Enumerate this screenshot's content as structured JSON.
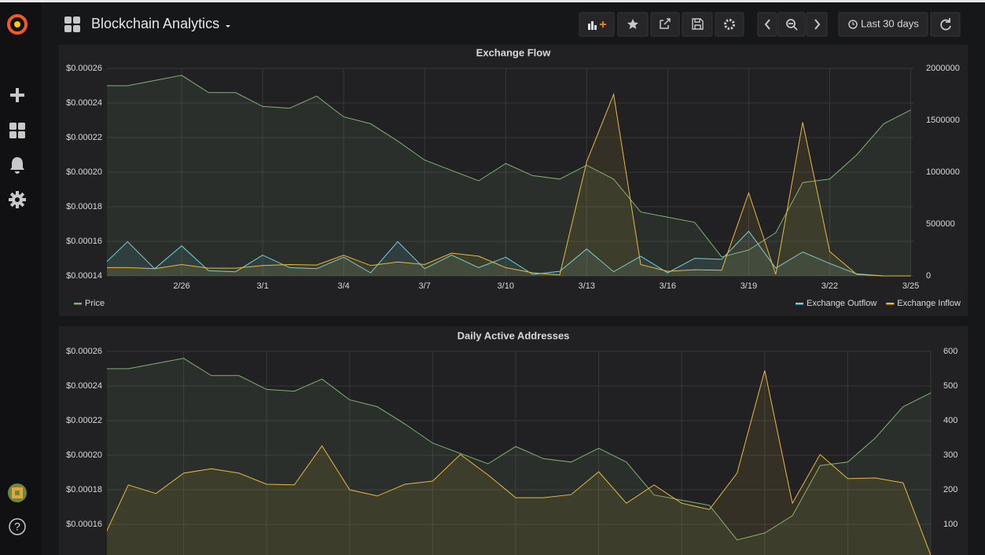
{
  "header": {
    "title": "Blockchain Analytics",
    "time_range": "Last 30 days"
  },
  "sidebar": {
    "help": "?"
  },
  "chart_data": [
    {
      "type": "line",
      "title": "Exchange Flow",
      "categories": [
        null,
        null,
        null,
        "2/26",
        null,
        null,
        "3/1",
        null,
        null,
        "3/4",
        null,
        null,
        "3/7",
        null,
        null,
        "3/10",
        null,
        null,
        "3/13",
        null,
        null,
        "3/16",
        null,
        null,
        "3/19",
        null,
        null,
        "3/22",
        null,
        null,
        "3/25"
      ],
      "ylim": [
        0.00014,
        0.00026
      ],
      "yticks": [
        {
          "value": 0.00014,
          "label": "$0.00014"
        },
        {
          "value": 0.00016,
          "label": "$0.00016"
        },
        {
          "value": 0.00018,
          "label": "$0.00018"
        },
        {
          "value": 0.0002,
          "label": "$0.00020"
        },
        {
          "value": 0.00022,
          "label": "$0.00022"
        },
        {
          "value": 0.00024,
          "label": "$0.00024"
        },
        {
          "value": 0.00026,
          "label": "$0.00026"
        }
      ],
      "y2lim": [
        0,
        2000000
      ],
      "y2ticks": [
        0,
        500000,
        1000000,
        1500000,
        2000000
      ],
      "grid": true,
      "legend": "bottom",
      "series": [
        {
          "name": "Price",
          "color": "#7eb26d",
          "fill": true,
          "values": [
            0.00025,
            0.00025,
            0.000253,
            0.000256,
            0.000246,
            0.000246,
            0.000238,
            0.000237,
            0.000244,
            0.000232,
            0.000228,
            0.000218,
            0.000207,
            0.000201,
            0.000195,
            0.000205,
            0.000198,
            0.000196,
            0.000204,
            0.000196,
            0.000177,
            0.000174,
            0.000171,
            0.000151,
            0.000155,
            0.000165,
            0.000194,
            0.000196,
            0.00021,
            0.000228,
            0.000236
          ]
        },
        {
          "name": "Exchange Outflow",
          "color": "#6ed0e0",
          "axis": "y2",
          "fill": true,
          "values": [
            80000,
            330000,
            70000,
            290000,
            50000,
            40000,
            200000,
            80000,
            70000,
            180000,
            30000,
            330000,
            70000,
            200000,
            80000,
            180000,
            15000,
            45000,
            260000,
            40000,
            190000,
            30000,
            170000,
            160000,
            430000,
            75000,
            230000,
            120000,
            20000,
            0,
            0
          ]
        },
        {
          "name": "Exchange Inflow",
          "color": "#eab839",
          "axis": "y2",
          "fill": true,
          "values": [
            80000,
            80000,
            70000,
            110000,
            75000,
            75000,
            100000,
            110000,
            105000,
            200000,
            100000,
            135000,
            110000,
            220000,
            190000,
            80000,
            30000,
            10000,
            1100000,
            1750000,
            110000,
            45000,
            60000,
            55000,
            800000,
            15000,
            1480000,
            235000,
            15000,
            0,
            0
          ]
        }
      ]
    },
    {
      "type": "line",
      "title": "Daily Active Addresses",
      "categories": [
        null,
        null,
        null,
        null,
        null,
        null,
        null,
        null,
        null,
        null,
        null,
        null,
        null,
        null,
        null,
        null,
        null,
        null,
        null,
        null,
        null,
        null,
        null,
        null,
        null,
        null,
        null,
        null,
        null,
        null,
        null
      ],
      "ylim": [
        0.00014,
        0.00026
      ],
      "yticks": [
        {
          "value": 0.00016,
          "label": "$0.00016"
        },
        {
          "value": 0.00018,
          "label": "$0.00018"
        },
        {
          "value": 0.0002,
          "label": "$0.00020"
        },
        {
          "value": 0.00022,
          "label": "$0.00022"
        },
        {
          "value": 0.00024,
          "label": "$0.00024"
        },
        {
          "value": 0.00026,
          "label": "$0.00026"
        }
      ],
      "y2lim": [
        0,
        600
      ],
      "y2ticks": [
        100,
        200,
        300,
        400,
        500,
        600
      ],
      "grid": true,
      "legend": false,
      "series": [
        {
          "name": "Price",
          "color": "#7eb26d",
          "fill": true,
          "values": [
            0.00025,
            0.00025,
            0.000253,
            0.000256,
            0.000246,
            0.000246,
            0.000238,
            0.000237,
            0.000244,
            0.000232,
            0.000228,
            0.000218,
            0.000207,
            0.000201,
            0.000195,
            0.000205,
            0.000198,
            0.000196,
            0.000204,
            0.000196,
            0.000177,
            0.000174,
            0.000171,
            0.000151,
            0.000155,
            0.000165,
            0.000194,
            0.000196,
            0.00021,
            0.000228,
            0.000236
          ]
        },
        {
          "name": "Daily Active Addresses",
          "color": "#eab839",
          "axis": "y2",
          "fill": true,
          "values": [
            43,
            214,
            189,
            248,
            261,
            248,
            216,
            214,
            327,
            200,
            182,
            216,
            225,
            302,
            243,
            177,
            177,
            186,
            252,
            161,
            214,
            161,
            143,
            248,
            545,
            161,
            302,
            232,
            234,
            220,
            11
          ]
        }
      ]
    }
  ]
}
